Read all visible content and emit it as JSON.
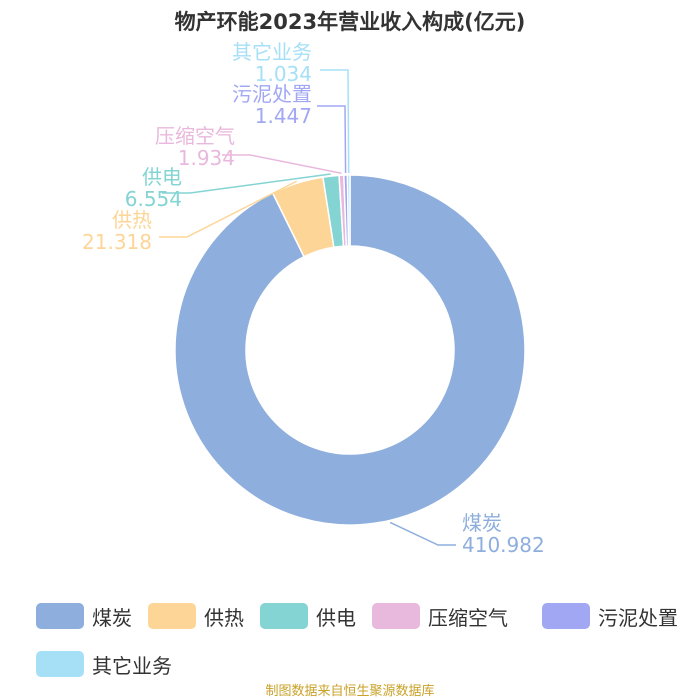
{
  "chart_data": {
    "type": "pie",
    "donut": true,
    "title": "物产环能2023年营业收入构成(亿元)",
    "categories": [
      "煤炭",
      "供热",
      "供电",
      "压缩空气",
      "污泥处置",
      "其它业务"
    ],
    "values": [
      410.982,
      21.318,
      6.554,
      1.934,
      1.447,
      1.034
    ],
    "value_labels": [
      "410.982",
      "21.318",
      "6.554",
      "1.934",
      "1.447",
      "1.034"
    ],
    "colors": [
      "#8eaedd",
      "#fdd597",
      "#83d4d3",
      "#e8b8dd",
      "#a2a7f4",
      "#a6e0f7"
    ],
    "legend_position": "bottom-left"
  },
  "source": "制图数据来自恒生聚源数据库"
}
